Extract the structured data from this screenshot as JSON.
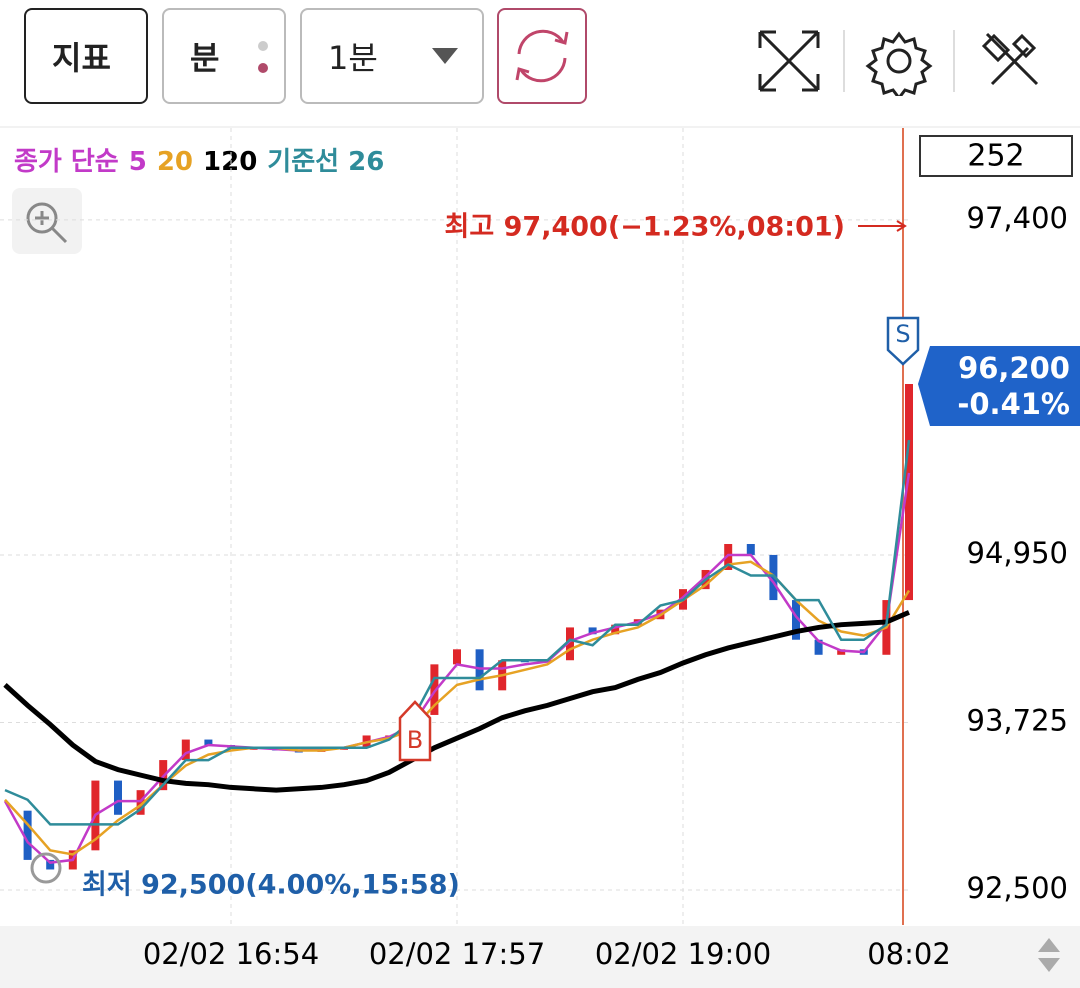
{
  "toolbar": {
    "indicator_button": "지표",
    "period_type": "분",
    "period_select": "1분"
  },
  "chart_data": {
    "type": "stock",
    "legend_prefix": "종가 단순",
    "categories": [
      null,
      null,
      null,
      null,
      null,
      null,
      null,
      null,
      null,
      null,
      "02/02 16:54",
      null,
      null,
      null,
      null,
      null,
      null,
      null,
      null,
      null,
      "02/02 17:57",
      null,
      null,
      null,
      null,
      null,
      null,
      null,
      null,
      null,
      "02/02 19:00",
      null,
      null,
      null,
      null,
      null,
      null,
      null,
      null,
      null,
      "08:02"
    ],
    "price": {
      "up_color": "#e0262b",
      "down_color": "#1f5fc4",
      "values": [
        93080,
        92720,
        92650,
        92790,
        93300,
        93050,
        93230,
        93450,
        93600,
        93560,
        93540,
        93540,
        93520,
        93510,
        93540,
        93540,
        93630,
        93630,
        93780,
        94150,
        94260,
        93960,
        94180,
        94170,
        94180,
        94420,
        94370,
        94440,
        94480,
        94550,
        94700,
        94840,
        95030,
        94950,
        94620,
        94330,
        94220,
        94260,
        94220,
        94620,
        96200
      ]
    },
    "series": [
      {
        "name": "5",
        "color": "#c23ac8",
        "values": [
          93150,
          92850,
          92700,
          92720,
          93050,
          93150,
          93150,
          93330,
          93500,
          93560,
          93550,
          93540,
          93530,
          93520,
          93530,
          93540,
          93580,
          93620,
          93700,
          93950,
          94150,
          94120,
          94120,
          94150,
          94170,
          94320,
          94380,
          94420,
          94460,
          94520,
          94640,
          94790,
          94950,
          94950,
          94750,
          94500,
          94320,
          94250,
          94240,
          94450,
          95550
        ]
      },
      {
        "name": "20",
        "color": "#e6a224",
        "values": [
          93160,
          92980,
          92790,
          92760,
          92870,
          93010,
          93120,
          93270,
          93410,
          93490,
          93520,
          93540,
          93540,
          93520,
          93520,
          93540,
          93580,
          93610,
          93670,
          93850,
          94000,
          94040,
          94070,
          94110,
          94150,
          94260,
          94330,
          94380,
          94420,
          94510,
          94620,
          94730,
          94880,
          94900,
          94800,
          94620,
          94470,
          94390,
          94360,
          94420,
          94690
        ]
      },
      {
        "name": "120",
        "color": "#000000",
        "values": [
          94000,
          93850,
          93710,
          93560,
          93440,
          93380,
          93340,
          93300,
          93280,
          93270,
          93250,
          93240,
          93230,
          93240,
          93250,
          93270,
          93300,
          93360,
          93450,
          93540,
          93610,
          93680,
          93760,
          93810,
          93850,
          93900,
          93950,
          93980,
          94040,
          94090,
          94160,
          94220,
          94270,
          94310,
          94350,
          94390,
          94420,
          94440,
          94450,
          94460,
          94530
        ]
      },
      {
        "name": "기준선 26",
        "color": "#2f8c9a",
        "values": [
          93230,
          93160,
          92980,
          92980,
          92980,
          92980,
          93090,
          93270,
          93450,
          93450,
          93540,
          93540,
          93540,
          93540,
          93540,
          93540,
          93540,
          93600,
          93740,
          94050,
          94050,
          94050,
          94180,
          94180,
          94180,
          94330,
          94290,
          94440,
          94440,
          94580,
          94620,
          94770,
          94880,
          94800,
          94800,
          94620,
          94620,
          94330,
          94330,
          94440,
          95790
        ]
      }
    ],
    "ylim": [
      92244,
      98072
    ],
    "yticks": [
      {
        "value": 92500,
        "label": "92,500"
      },
      {
        "value": 93725,
        "label": "93,725"
      },
      {
        "value": 94950,
        "label": "94,950"
      },
      {
        "value": 97400,
        "label": "97,400"
      }
    ],
    "grid": true,
    "count_box": "252",
    "high_annotation": "최고 97,400(−1.23%,08:01)",
    "low_annotation": "최저 92,500(4.00%,15:58)",
    "price_tag": {
      "price": "96,200",
      "change": "-0.41%"
    },
    "buy_marker": "B",
    "sell_marker": "S"
  }
}
